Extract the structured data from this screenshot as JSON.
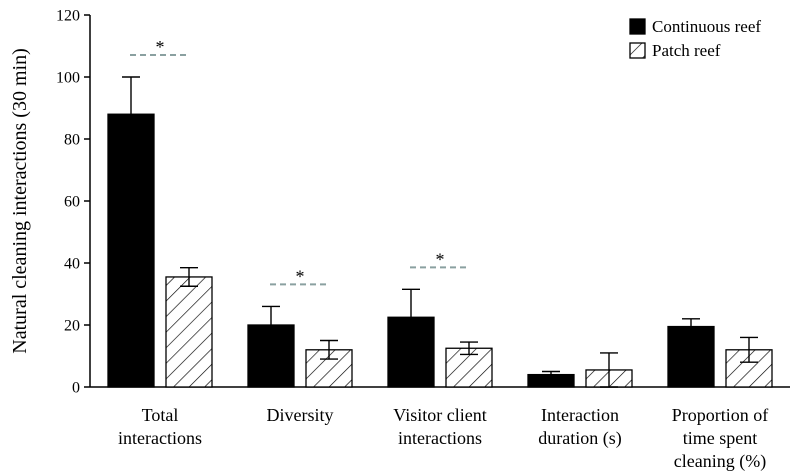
{
  "chart_data": {
    "type": "bar",
    "title": "",
    "xlabel": "",
    "ylabel": "Natural cleaning interactions (30 min)",
    "ylim": [
      0,
      120
    ],
    "yticks": [
      "0",
      "20",
      "40",
      "60",
      "80",
      "100",
      "120"
    ],
    "grid": false,
    "legend_position": "top-right",
    "categories": [
      [
        "Total",
        "interactions"
      ],
      [
        "Diversity"
      ],
      [
        "Visitor client",
        "interactions"
      ],
      [
        "Interaction",
        "duration (s)"
      ],
      [
        "Proportion of",
        "time spent",
        "cleaning (%)"
      ]
    ],
    "series": [
      {
        "name": "Continuous reef",
        "fill": "solid",
        "color": "#000000",
        "values": [
          88,
          20,
          22.5,
          4,
          19.5
        ],
        "errors": [
          12,
          6,
          9,
          1,
          2.5
        ]
      },
      {
        "name": "Patch reef",
        "fill": "hatched",
        "color": "#ffffff",
        "values": [
          35.5,
          12,
          12.5,
          5.5,
          12
        ],
        "errors": [
          3,
          3,
          2,
          5.5,
          4
        ]
      }
    ],
    "annotations": [
      {
        "category": 0,
        "label": "*"
      },
      {
        "category": 1,
        "label": "*"
      },
      {
        "category": 2,
        "label": "*"
      }
    ],
    "annotation_line_color": "#8aa0a0"
  }
}
